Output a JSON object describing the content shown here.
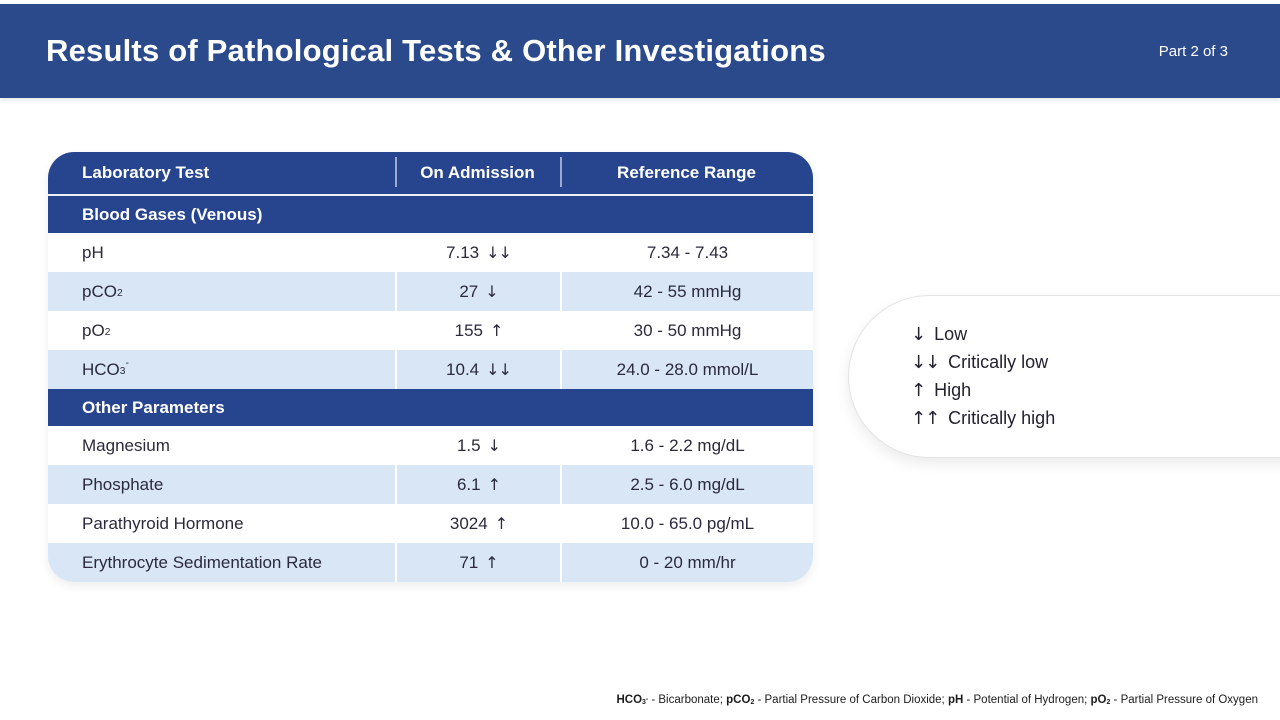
{
  "header": {
    "title": "Results of Pathological Tests & Other Investigations",
    "part_label": "Part 2 of 3"
  },
  "table": {
    "columns": [
      "Laboratory Test",
      "On Admission",
      "Reference Range"
    ],
    "sections": [
      {
        "title": "Blood Gases (Venous)",
        "rows": [
          {
            "test": {
              "base": "pH",
              "sub": "",
              "sup": ""
            },
            "value": "7.13",
            "flag": "↓↓",
            "range": "7.34 - 7.43"
          },
          {
            "test": {
              "base": "pCO",
              "sub": "2",
              "sup": ""
            },
            "value": "27",
            "flag": "↓",
            "range": "42 - 55 mmHg"
          },
          {
            "test": {
              "base": "pO",
              "sub": "2",
              "sup": ""
            },
            "value": "155",
            "flag": "↑",
            "range": "30 - 50 mmHg"
          },
          {
            "test": {
              "base": "HCO",
              "sub": "3",
              "sup": "-"
            },
            "value": "10.4",
            "flag": "↓↓",
            "range": "24.0 - 28.0 mmol/L"
          }
        ]
      },
      {
        "title": "Other Parameters",
        "rows": [
          {
            "test": {
              "base": "Magnesium",
              "sub": "",
              "sup": ""
            },
            "value": "1.5",
            "flag": "↓",
            "range": "1.6 - 2.2 mg/dL"
          },
          {
            "test": {
              "base": "Phosphate",
              "sub": "",
              "sup": ""
            },
            "value": "6.1",
            "flag": "↑",
            "range": "2.5 - 6.0 mg/dL"
          },
          {
            "test": {
              "base": "Parathyroid Hormone",
              "sub": "",
              "sup": ""
            },
            "value": "3024",
            "flag": "↑",
            "range": "10.0 - 65.0 pg/mL"
          },
          {
            "test": {
              "base": "Erythrocyte Sedimentation Rate",
              "sub": "",
              "sup": ""
            },
            "value": "71",
            "flag": "↑",
            "range": "0 - 20 mm/hr"
          }
        ]
      }
    ]
  },
  "legend": {
    "items": [
      {
        "symbol": "↓",
        "label": "Low"
      },
      {
        "symbol": "↓↓",
        "label": "Critically low"
      },
      {
        "symbol": "↑",
        "label": "High"
      },
      {
        "symbol": "↑↑",
        "label": "Critically high"
      }
    ]
  },
  "footnote": {
    "terms": [
      {
        "base": "HCO",
        "sub": "3",
        "sup": "-",
        "rest": " - Bicarbonate; "
      },
      {
        "base": "pCO",
        "sub": "2",
        "sup": "",
        "rest": " - Partial Pressure of Carbon Dioxide; "
      },
      {
        "base": "pH",
        "sub": "",
        "sup": "",
        "rest": " - Potential of Hydrogen; "
      },
      {
        "base": "pO",
        "sub": "2",
        "sup": "",
        "rest": " - Partial Pressure of Oxygen"
      }
    ]
  },
  "colors": {
    "banner_blue": "#2b4a8c",
    "table_header_blue": "#27448e",
    "row_stripe_blue": "#d8e6f5",
    "text_dark": "#2a2a3c"
  }
}
